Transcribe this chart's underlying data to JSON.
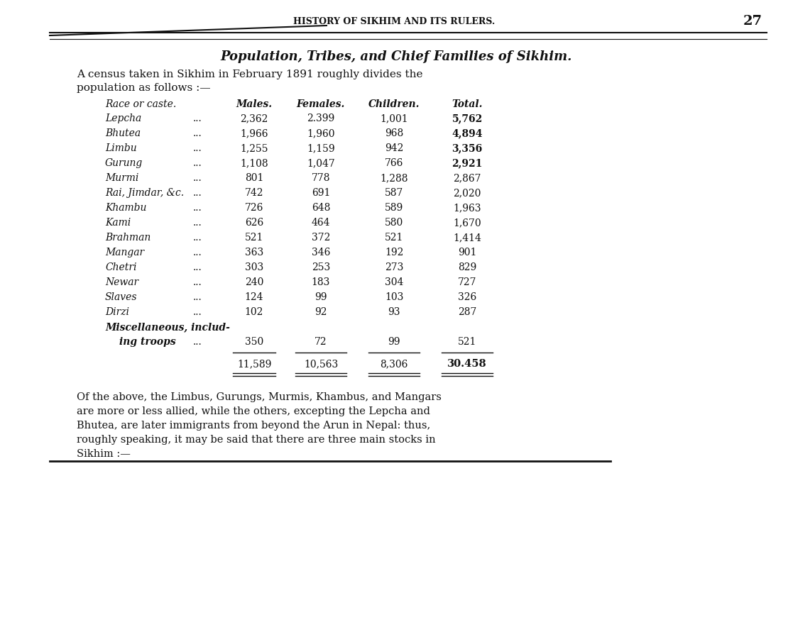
{
  "header_top": "HISTORY OF SIKHIM AND ITS RULERS.",
  "page_number": "27",
  "title": "Population, Tribes, and Chief Families of Sikhim.",
  "intro_line1": "A census taken in Sikhim in February 1891 roughly divides the",
  "intro_line2": "population as follows :—",
  "col_header_race": "Race or caste.",
  "col_header_males": "Males.",
  "col_header_females": "Females.",
  "col_header_children": "Children.",
  "col_header_total": "Total.",
  "rows": [
    [
      "Lepcha",
      "...",
      "2,362",
      "2.399",
      "1,001",
      "5,762",
      false
    ],
    [
      "Bhutea",
      "...",
      "1,966",
      "1,960",
      "968",
      "4,894",
      false
    ],
    [
      "Limbu",
      "...",
      "1,255",
      "1,159",
      "942",
      "3,356",
      false
    ],
    [
      "Gurung",
      "...",
      "1,108",
      "1,047",
      "766",
      "2,921",
      false
    ],
    [
      "Murmi",
      "...",
      "801",
      "778",
      "1,288",
      "2,867",
      false
    ],
    [
      "Rai, Jimdar, &c.",
      "...",
      "742",
      "691",
      "587",
      "2,020",
      false
    ],
    [
      "Khambu",
      "...",
      "726",
      "648",
      "589",
      "1,963",
      false
    ],
    [
      "Kami",
      "...",
      "626",
      "464",
      "580",
      "1,670",
      false
    ],
    [
      "Brahman",
      "...",
      "521",
      "372",
      "521",
      "1,414",
      false
    ],
    [
      "Mangar",
      "...",
      "363",
      "346",
      "192",
      "901",
      false
    ],
    [
      "Chetri",
      "...",
      "303",
      "253",
      "273",
      "829",
      false
    ],
    [
      "Newar",
      "...",
      "240",
      "183",
      "304",
      "727",
      false
    ],
    [
      "Slaves",
      "...",
      "124",
      "99",
      "103",
      "326",
      false
    ],
    [
      "Dirzi",
      "...",
      "102",
      "92",
      "93",
      "287",
      false
    ],
    [
      "Miscellaneous, includ-",
      "",
      "",
      "",
      "",
      "",
      true
    ],
    [
      "ing troops",
      "...",
      "350",
      "72",
      "99",
      "521",
      true
    ]
  ],
  "total_males": "11,589",
  "total_females": "10,563",
  "total_children": "8,306",
  "total_total": "30.458",
  "footer_line1": "Of the above, the Limbus, Gurungs, Murmis, Khambus, and Mangars",
  "footer_line2": "are more or less allied, while the others, excepting the Lepcha and",
  "footer_line3": "Bhutea, are later immigrants from beyond the Arun in Nepal: thus,",
  "footer_line4": "roughly speaking, it may be said that there are three main stocks in",
  "footer_line5": "Sikhim :—",
  "bg_color": "#ffffff",
  "text_color": "#111111"
}
